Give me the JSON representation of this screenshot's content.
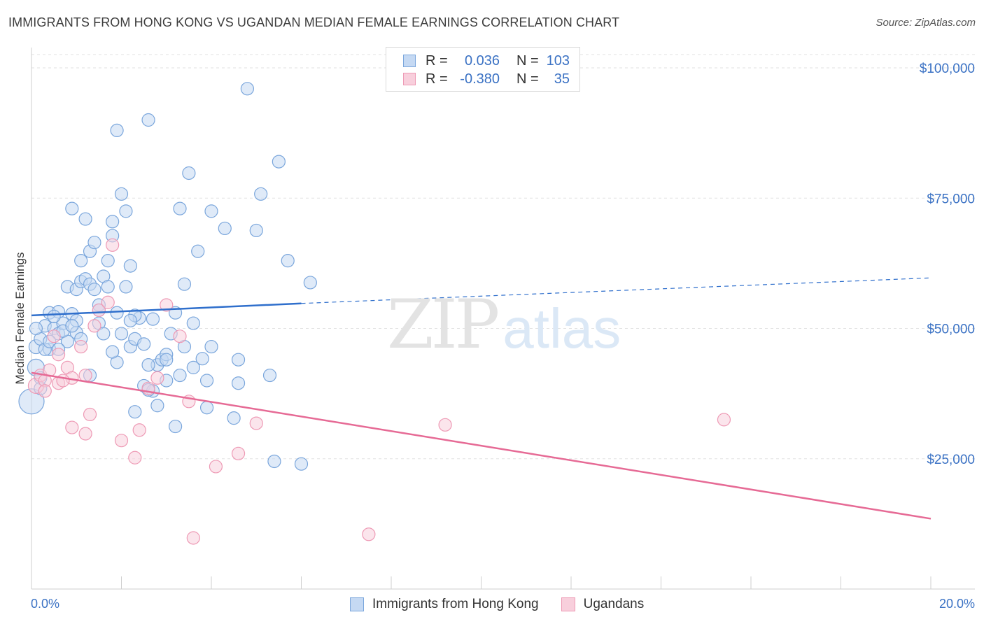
{
  "header": {
    "title": "IMMIGRANTS FROM HONG KONG VS UGANDAN MEDIAN FEMALE EARNINGS CORRELATION CHART",
    "source": "Source: ZipAtlas.com"
  },
  "watermark": {
    "zip": "ZIP",
    "atlas": "atlas"
  },
  "legend_top": {
    "rows": [
      {
        "r_label": "R =",
        "r_value": "0.036",
        "n_label": "N =",
        "n_value": "103"
      },
      {
        "r_label": "R =",
        "r_value": "-0.380",
        "n_label": "N =",
        "n_value": "35"
      }
    ]
  },
  "legend_bottom": {
    "items": [
      {
        "label": "Immigrants from Hong Kong"
      },
      {
        "label": "Ugandans"
      }
    ]
  },
  "colors": {
    "blue_fill": "#c5d9f3",
    "blue_stroke": "#7aa6dc",
    "blue_line": "#2f6fcc",
    "pink_fill": "#f8cfdc",
    "pink_stroke": "#ee9ab5",
    "pink_line": "#e66a95",
    "tick_label": "#3b72c4",
    "grid": "#e2e2e2"
  },
  "chart_data": {
    "type": "scatter",
    "title": "IMMIGRANTS FROM HONG KONG VS UGANDAN MEDIAN FEMALE EARNINGS CORRELATION CHART",
    "xlabel": "",
    "ylabel": "Median Female Earnings",
    "xlim": [
      0,
      20
    ],
    "ylim": [
      0,
      105000
    ],
    "x_tick_labels": [
      {
        "value": 0,
        "label": "0.0%"
      },
      {
        "value": 20,
        "label": "20.0%"
      }
    ],
    "y_tick_labels": [
      {
        "value": 25000,
        "label": "$25,000"
      },
      {
        "value": 50000,
        "label": "$50,000"
      },
      {
        "value": 75000,
        "label": "$75,000"
      },
      {
        "value": 100000,
        "label": "$100,000"
      }
    ],
    "grid": true,
    "legend_position": "bottom-center",
    "series": [
      {
        "name": "Immigrants from Hong Kong",
        "color": "#7aa6dc",
        "trend": {
          "x0": 0,
          "y0": 52500,
          "x1": 6,
          "y1": 54800,
          "dashed_to_x": 20,
          "dashed_to_y": 59700
        },
        "points": [
          [
            0.0,
            36000,
            18
          ],
          [
            0.1,
            42500,
            12
          ],
          [
            0.1,
            46500,
            10
          ],
          [
            0.2,
            48000,
            9
          ],
          [
            0.2,
            40500,
            9
          ],
          [
            0.3,
            50500,
            9
          ],
          [
            0.4,
            53000,
            9
          ],
          [
            0.4,
            46000,
            9
          ],
          [
            0.5,
            50000,
            9
          ],
          [
            0.6,
            53200,
            9
          ],
          [
            0.6,
            49000,
            9
          ],
          [
            0.7,
            51000,
            9
          ],
          [
            0.8,
            47500,
            9
          ],
          [
            0.8,
            58000,
            9
          ],
          [
            0.9,
            73000,
            9
          ],
          [
            0.9,
            52800,
            9
          ],
          [
            1.0,
            57500,
            9
          ],
          [
            1.0,
            49200,
            9
          ],
          [
            1.1,
            63000,
            9
          ],
          [
            1.1,
            59000,
            9
          ],
          [
            1.2,
            71000,
            9
          ],
          [
            1.2,
            59500,
            9
          ],
          [
            1.3,
            64800,
            9
          ],
          [
            1.3,
            58500,
            9
          ],
          [
            1.4,
            66500,
            9
          ],
          [
            1.5,
            51000,
            9
          ],
          [
            1.5,
            54500,
            9
          ],
          [
            1.6,
            60000,
            9
          ],
          [
            1.6,
            49000,
            9
          ],
          [
            1.7,
            58000,
            9
          ],
          [
            1.7,
            63000,
            9
          ],
          [
            1.8,
            67800,
            9
          ],
          [
            1.8,
            70500,
            9
          ],
          [
            1.9,
            88000,
            9
          ],
          [
            1.9,
            53000,
            9
          ],
          [
            2.0,
            75800,
            9
          ],
          [
            2.0,
            49000,
            9
          ],
          [
            2.1,
            72500,
            9
          ],
          [
            2.1,
            58000,
            9
          ],
          [
            2.2,
            62000,
            9
          ],
          [
            2.2,
            46500,
            9
          ],
          [
            2.3,
            48000,
            9
          ],
          [
            2.3,
            34000,
            9
          ],
          [
            2.4,
            52000,
            9
          ],
          [
            2.5,
            39000,
            9
          ],
          [
            2.5,
            47000,
            9
          ],
          [
            2.6,
            90000,
            9
          ],
          [
            2.7,
            51800,
            9
          ],
          [
            2.7,
            38000,
            9
          ],
          [
            2.8,
            35200,
            9
          ],
          [
            2.8,
            43000,
            9
          ],
          [
            2.9,
            44000,
            9
          ],
          [
            3.0,
            45000,
            9
          ],
          [
            3.0,
            40000,
            9
          ],
          [
            3.1,
            49000,
            9
          ],
          [
            3.2,
            31200,
            9
          ],
          [
            3.2,
            53000,
            9
          ],
          [
            3.3,
            73000,
            9
          ],
          [
            3.4,
            58500,
            9
          ],
          [
            3.4,
            46500,
            9
          ],
          [
            3.5,
            79800,
            9
          ],
          [
            3.6,
            42500,
            9
          ],
          [
            3.6,
            51000,
            9
          ],
          [
            3.7,
            64800,
            9
          ],
          [
            3.8,
            44200,
            9
          ],
          [
            3.9,
            40000,
            9
          ],
          [
            3.9,
            34800,
            9
          ],
          [
            4.0,
            72500,
            9
          ],
          [
            4.0,
            46500,
            9
          ],
          [
            4.3,
            69200,
            9
          ],
          [
            4.5,
            32800,
            9
          ],
          [
            4.6,
            39500,
            9
          ],
          [
            4.6,
            44000,
            9
          ],
          [
            4.8,
            96000,
            9
          ],
          [
            5.0,
            68800,
            9
          ],
          [
            5.1,
            75800,
            9
          ],
          [
            5.3,
            41000,
            9
          ],
          [
            5.4,
            24500,
            9
          ],
          [
            5.5,
            82000,
            9
          ],
          [
            5.7,
            63000,
            9
          ],
          [
            6.0,
            24000,
            9
          ],
          [
            6.2,
            58800,
            9
          ],
          [
            0.3,
            46000,
            9
          ],
          [
            0.5,
            52300,
            9
          ],
          [
            0.7,
            49500,
            9
          ],
          [
            1.0,
            51500,
            9
          ],
          [
            1.3,
            41000,
            9
          ],
          [
            1.5,
            53500,
            9
          ],
          [
            1.9,
            43500,
            9
          ],
          [
            2.3,
            52500,
            9
          ],
          [
            2.6,
            43000,
            9
          ],
          [
            3.0,
            44000,
            9
          ],
          [
            0.2,
            38500,
            9
          ],
          [
            0.4,
            47500,
            9
          ],
          [
            0.9,
            50500,
            9
          ],
          [
            1.4,
            57500,
            9
          ],
          [
            1.8,
            45500,
            9
          ],
          [
            2.2,
            51500,
            9
          ],
          [
            2.6,
            38200,
            9
          ],
          [
            3.3,
            41000,
            9
          ],
          [
            0.1,
            50000,
            9
          ],
          [
            0.6,
            46000,
            9
          ],
          [
            1.1,
            48000,
            9
          ]
        ]
      },
      {
        "name": "Ugandans",
        "color": "#ee9ab5",
        "trend": {
          "x0": 0,
          "y0": 41500,
          "x1": 20,
          "y1": 13500
        },
        "points": [
          [
            0.1,
            39000,
            11
          ],
          [
            0.2,
            41000,
            9
          ],
          [
            0.3,
            40000,
            9
          ],
          [
            0.4,
            42000,
            9
          ],
          [
            0.5,
            48500,
            9
          ],
          [
            0.6,
            39500,
            9
          ],
          [
            0.6,
            45000,
            9
          ],
          [
            0.8,
            42500,
            9
          ],
          [
            0.9,
            40500,
            9
          ],
          [
            0.9,
            31000,
            9
          ],
          [
            1.1,
            46500,
            9
          ],
          [
            1.2,
            41000,
            9
          ],
          [
            1.2,
            29800,
            9
          ],
          [
            1.3,
            33500,
            9
          ],
          [
            1.4,
            50500,
            9
          ],
          [
            1.5,
            53500,
            9
          ],
          [
            1.7,
            55000,
            9
          ],
          [
            1.8,
            66000,
            9
          ],
          [
            2.0,
            28500,
            9
          ],
          [
            2.3,
            25200,
            9
          ],
          [
            2.4,
            30500,
            9
          ],
          [
            2.6,
            38500,
            9
          ],
          [
            2.8,
            40500,
            9
          ],
          [
            3.0,
            54500,
            9
          ],
          [
            3.3,
            48500,
            9
          ],
          [
            3.5,
            36000,
            9
          ],
          [
            3.6,
            9800,
            9
          ],
          [
            4.1,
            23500,
            9
          ],
          [
            4.6,
            26000,
            9
          ],
          [
            5.0,
            31800,
            9
          ],
          [
            7.5,
            10500,
            9
          ],
          [
            9.2,
            31500,
            9
          ],
          [
            15.4,
            32500,
            9
          ],
          [
            0.3,
            38000,
            9
          ],
          [
            0.7,
            40000,
            9
          ]
        ]
      }
    ]
  }
}
